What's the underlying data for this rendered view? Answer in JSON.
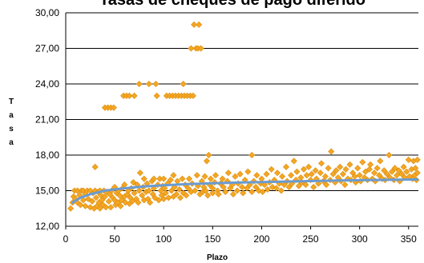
{
  "chart_data": {
    "type": "scatter",
    "title": "Tasas de cheques de pago diferido",
    "xlabel": "Plazo",
    "ylabel": "Tasa",
    "xlim": [
      0,
      360
    ],
    "ylim": [
      12,
      30
    ],
    "xticks": [
      0,
      50,
      100,
      150,
      200,
      250,
      300,
      350
    ],
    "yticks": [
      12,
      15,
      18,
      21,
      24,
      27,
      30
    ],
    "xtick_labels": [
      "0",
      "50",
      "100",
      "150",
      "200",
      "250",
      "300",
      "350"
    ],
    "ytick_labels": [
      "12,00",
      "15,00",
      "18,00",
      "21,00",
      "24,00",
      "27,00",
      "30,00"
    ],
    "grid": "horizontal",
    "legend": "none",
    "colors": {
      "points": "#f5a623",
      "point_edge": "#d98e0f",
      "trend": "#6a9bd1",
      "gridline": "#000000"
    },
    "series": [
      {
        "name": "",
        "type": "scatter",
        "points": [
          [
            5,
            13.5
          ],
          [
            7,
            14.0
          ],
          [
            8,
            14.5
          ],
          [
            9,
            15.0
          ],
          [
            10,
            14.3
          ],
          [
            12,
            14.0
          ],
          [
            12,
            15.0
          ],
          [
            14,
            14.6
          ],
          [
            15,
            13.8
          ],
          [
            16,
            15.0
          ],
          [
            18,
            14.2
          ],
          [
            18,
            15.0
          ],
          [
            20,
            14.7
          ],
          [
            20,
            13.7
          ],
          [
            22,
            15.0
          ],
          [
            23,
            14.3
          ],
          [
            25,
            13.6
          ],
          [
            25,
            15.0
          ],
          [
            27,
            14.1
          ],
          [
            28,
            14.8
          ],
          [
            29,
            13.5
          ],
          [
            30,
            15.0
          ],
          [
            30,
            17.0
          ],
          [
            31,
            14.4
          ],
          [
            32,
            13.7
          ],
          [
            33,
            14.9
          ],
          [
            34,
            14.0
          ],
          [
            35,
            15.0
          ],
          [
            35,
            13.5
          ],
          [
            36,
            14.6
          ],
          [
            37,
            14.2
          ],
          [
            38,
            13.8
          ],
          [
            39,
            15.0
          ],
          [
            40,
            14.5
          ],
          [
            40,
            22.0
          ],
          [
            41,
            13.6
          ],
          [
            42,
            14.9
          ],
          [
            43,
            22.0
          ],
          [
            44,
            14.1
          ],
          [
            45,
            14.7
          ],
          [
            46,
            22.0
          ],
          [
            46,
            13.6
          ],
          [
            47,
            15.0
          ],
          [
            48,
            14.4
          ],
          [
            49,
            22.0
          ],
          [
            50,
            14.2
          ],
          [
            50,
            15.3
          ],
          [
            51,
            13.8
          ],
          [
            52,
            14.8
          ],
          [
            53,
            14.0
          ],
          [
            54,
            15.0
          ],
          [
            55,
            14.6
          ],
          [
            56,
            13.7
          ],
          [
            57,
            14.2
          ],
          [
            58,
            15.2
          ],
          [
            59,
            23.0
          ],
          [
            60,
            14.5
          ],
          [
            60,
            15.5
          ],
          [
            61,
            14.0
          ],
          [
            62,
            23.0
          ],
          [
            63,
            14.7
          ],
          [
            64,
            15.0
          ],
          [
            65,
            23.0
          ],
          [
            65,
            13.9
          ],
          [
            66,
            14.4
          ],
          [
            67,
            15.2
          ],
          [
            68,
            14.1
          ],
          [
            69,
            15.7
          ],
          [
            70,
            14.8
          ],
          [
            70,
            23.0
          ],
          [
            72,
            14.3
          ],
          [
            73,
            15.5
          ],
          [
            74,
            14.0
          ],
          [
            75,
            15.0
          ],
          [
            75,
            24.0
          ],
          [
            76,
            16.5
          ],
          [
            78,
            14.6
          ],
          [
            79,
            15.3
          ],
          [
            80,
            14.2
          ],
          [
            80,
            16.0
          ],
          [
            82,
            14.9
          ],
          [
            83,
            15.6
          ],
          [
            84,
            14.3
          ],
          [
            85,
            24.0
          ],
          [
            85,
            15.0
          ],
          [
            86,
            14.0
          ],
          [
            88,
            15.8
          ],
          [
            89,
            14.7
          ],
          [
            90,
            15.2
          ],
          [
            90,
            16.0
          ],
          [
            91,
            14.4
          ],
          [
            92,
            24.0
          ],
          [
            93,
            23.0
          ],
          [
            94,
            15.5
          ],
          [
            95,
            14.2
          ],
          [
            96,
            16.0
          ],
          [
            97,
            15.0
          ],
          [
            98,
            14.6
          ],
          [
            99,
            15.4
          ],
          [
            100,
            16.0
          ],
          [
            100,
            14.3
          ],
          [
            101,
            15.2
          ],
          [
            102,
            14.8
          ],
          [
            103,
            23.0
          ],
          [
            104,
            15.6
          ],
          [
            105,
            14.4
          ],
          [
            106,
            23.0
          ],
          [
            107,
            15.9
          ],
          [
            108,
            15.0
          ],
          [
            109,
            23.0
          ],
          [
            110,
            14.5
          ],
          [
            110,
            16.3
          ],
          [
            111,
            15.3
          ],
          [
            112,
            23.0
          ],
          [
            113,
            14.7
          ],
          [
            114,
            15.8
          ],
          [
            115,
            23.0
          ],
          [
            116,
            15.1
          ],
          [
            117,
            14.4
          ],
          [
            118,
            23.0
          ],
          [
            119,
            16.0
          ],
          [
            120,
            24.0
          ],
          [
            120,
            14.8
          ],
          [
            121,
            23.0
          ],
          [
            122,
            15.5
          ],
          [
            123,
            14.6
          ],
          [
            124,
            23.0
          ],
          [
            125,
            15.2
          ],
          [
            126,
            16.0
          ],
          [
            127,
            23.0
          ],
          [
            128,
            27.0
          ],
          [
            128,
            14.9
          ],
          [
            129,
            15.6
          ],
          [
            130,
            23.0
          ],
          [
            131,
            29.0
          ],
          [
            132,
            15.0
          ],
          [
            133,
            27.0
          ],
          [
            134,
            16.3
          ],
          [
            135,
            27.0
          ],
          [
            135,
            15.4
          ],
          [
            136,
            29.0
          ],
          [
            137,
            14.7
          ],
          [
            138,
            27.0
          ],
          [
            139,
            15.8
          ],
          [
            140,
            14.9
          ],
          [
            141,
            15.3
          ],
          [
            142,
            16.2
          ],
          [
            143,
            15.0
          ],
          [
            144,
            17.5
          ],
          [
            145,
            14.6
          ],
          [
            146,
            18.0
          ],
          [
            147,
            15.5
          ],
          [
            148,
            16.0
          ],
          [
            150,
            15.2
          ],
          [
            150,
            14.8
          ],
          [
            152,
            15.7
          ],
          [
            153,
            16.3
          ],
          [
            155,
            15.0
          ],
          [
            156,
            14.7
          ],
          [
            158,
            15.6
          ],
          [
            160,
            16.0
          ],
          [
            161,
            15.3
          ],
          [
            163,
            14.9
          ],
          [
            165,
            15.8
          ],
          [
            166,
            16.5
          ],
          [
            168,
            15.2
          ],
          [
            170,
            15.5
          ],
          [
            171,
            14.7
          ],
          [
            173,
            16.2
          ],
          [
            175,
            15.0
          ],
          [
            176,
            15.6
          ],
          [
            178,
            16.4
          ],
          [
            180,
            15.3
          ],
          [
            181,
            14.8
          ],
          [
            183,
            15.9
          ],
          [
            185,
            15.2
          ],
          [
            186,
            16.6
          ],
          [
            188,
            15.5
          ],
          [
            190,
            18.0
          ],
          [
            190,
            14.9
          ],
          [
            192,
            15.8
          ],
          [
            194,
            15.3
          ],
          [
            195,
            16.3
          ],
          [
            197,
            15.0
          ],
          [
            199,
            15.6
          ],
          [
            200,
            16.0
          ],
          [
            201,
            14.9
          ],
          [
            203,
            15.5
          ],
          [
            205,
            16.4
          ],
          [
            206,
            15.1
          ],
          [
            208,
            15.7
          ],
          [
            210,
            16.8
          ],
          [
            211,
            15.3
          ],
          [
            213,
            15.9
          ],
          [
            215,
            15.2
          ],
          [
            216,
            16.5
          ],
          [
            218,
            15.6
          ],
          [
            220,
            15.0
          ],
          [
            221,
            16.2
          ],
          [
            223,
            15.5
          ],
          [
            225,
            17.0
          ],
          [
            226,
            15.8
          ],
          [
            228,
            15.3
          ],
          [
            230,
            16.3
          ],
          [
            231,
            15.6
          ],
          [
            233,
            17.5
          ],
          [
            235,
            15.9
          ],
          [
            236,
            16.6
          ],
          [
            238,
            15.4
          ],
          [
            240,
            16.1
          ],
          [
            241,
            15.7
          ],
          [
            243,
            16.8
          ],
          [
            245,
            15.5
          ],
          [
            246,
            16.3
          ],
          [
            248,
            17.0
          ],
          [
            250,
            15.9
          ],
          [
            251,
            16.4
          ],
          [
            253,
            15.3
          ],
          [
            255,
            16.7
          ],
          [
            256,
            16.0
          ],
          [
            258,
            15.6
          ],
          [
            260,
            16.5
          ],
          [
            261,
            17.3
          ],
          [
            263,
            15.8
          ],
          [
            265,
            16.2
          ],
          [
            266,
            15.5
          ],
          [
            268,
            16.9
          ],
          [
            270,
            15.9
          ],
          [
            271,
            18.3
          ],
          [
            273,
            16.4
          ],
          [
            275,
            15.7
          ],
          [
            276,
            16.7
          ],
          [
            278,
            16.1
          ],
          [
            280,
            17.0
          ],
          [
            281,
            15.8
          ],
          [
            283,
            16.4
          ],
          [
            285,
            15.5
          ],
          [
            286,
            16.8
          ],
          [
            288,
            16.0
          ],
          [
            290,
            17.2
          ],
          [
            291,
            15.9
          ],
          [
            293,
            16.5
          ],
          [
            295,
            16.2
          ],
          [
            296,
            15.7
          ],
          [
            298,
            16.9
          ],
          [
            300,
            16.3
          ],
          [
            301,
            15.8
          ],
          [
            303,
            17.4
          ],
          [
            305,
            16.1
          ],
          [
            306,
            16.6
          ],
          [
            308,
            15.9
          ],
          [
            310,
            16.8
          ],
          [
            311,
            17.2
          ],
          [
            313,
            16.0
          ],
          [
            315,
            16.5
          ],
          [
            316,
            15.8
          ],
          [
            318,
            16.9
          ],
          [
            320,
            16.3
          ],
          [
            321,
            17.5
          ],
          [
            323,
            16.0
          ],
          [
            325,
            16.7
          ],
          [
            326,
            15.9
          ],
          [
            328,
            16.4
          ],
          [
            330,
            18.0
          ],
          [
            331,
            16.1
          ],
          [
            333,
            16.6
          ],
          [
            335,
            15.9
          ],
          [
            336,
            16.9
          ],
          [
            338,
            16.3
          ],
          [
            340,
            16.7
          ],
          [
            341,
            15.8
          ],
          [
            343,
            16.4
          ],
          [
            345,
            17.0
          ],
          [
            346,
            16.1
          ],
          [
            348,
            16.6
          ],
          [
            350,
            17.6
          ],
          [
            351,
            16.2
          ],
          [
            353,
            16.8
          ],
          [
            354,
            16.0
          ],
          [
            355,
            17.5
          ],
          [
            356,
            16.3
          ],
          [
            357,
            16.9
          ],
          [
            358,
            15.9
          ],
          [
            359,
            16.5
          ],
          [
            359,
            17.6
          ]
        ]
      },
      {
        "name": "",
        "type": "line",
        "points": [
          [
            7,
            14.0
          ],
          [
            15,
            14.4
          ],
          [
            25,
            14.7
          ],
          [
            40,
            15.0
          ],
          [
            60,
            15.2
          ],
          [
            80,
            15.35
          ],
          [
            100,
            15.45
          ],
          [
            125,
            15.55
          ],
          [
            150,
            15.62
          ],
          [
            175,
            15.68
          ],
          [
            200,
            15.72
          ],
          [
            225,
            15.77
          ],
          [
            250,
            15.81
          ],
          [
            275,
            15.85
          ],
          [
            300,
            15.88
          ],
          [
            325,
            15.91
          ],
          [
            350,
            15.94
          ],
          [
            359,
            15.95
          ]
        ]
      }
    ]
  }
}
